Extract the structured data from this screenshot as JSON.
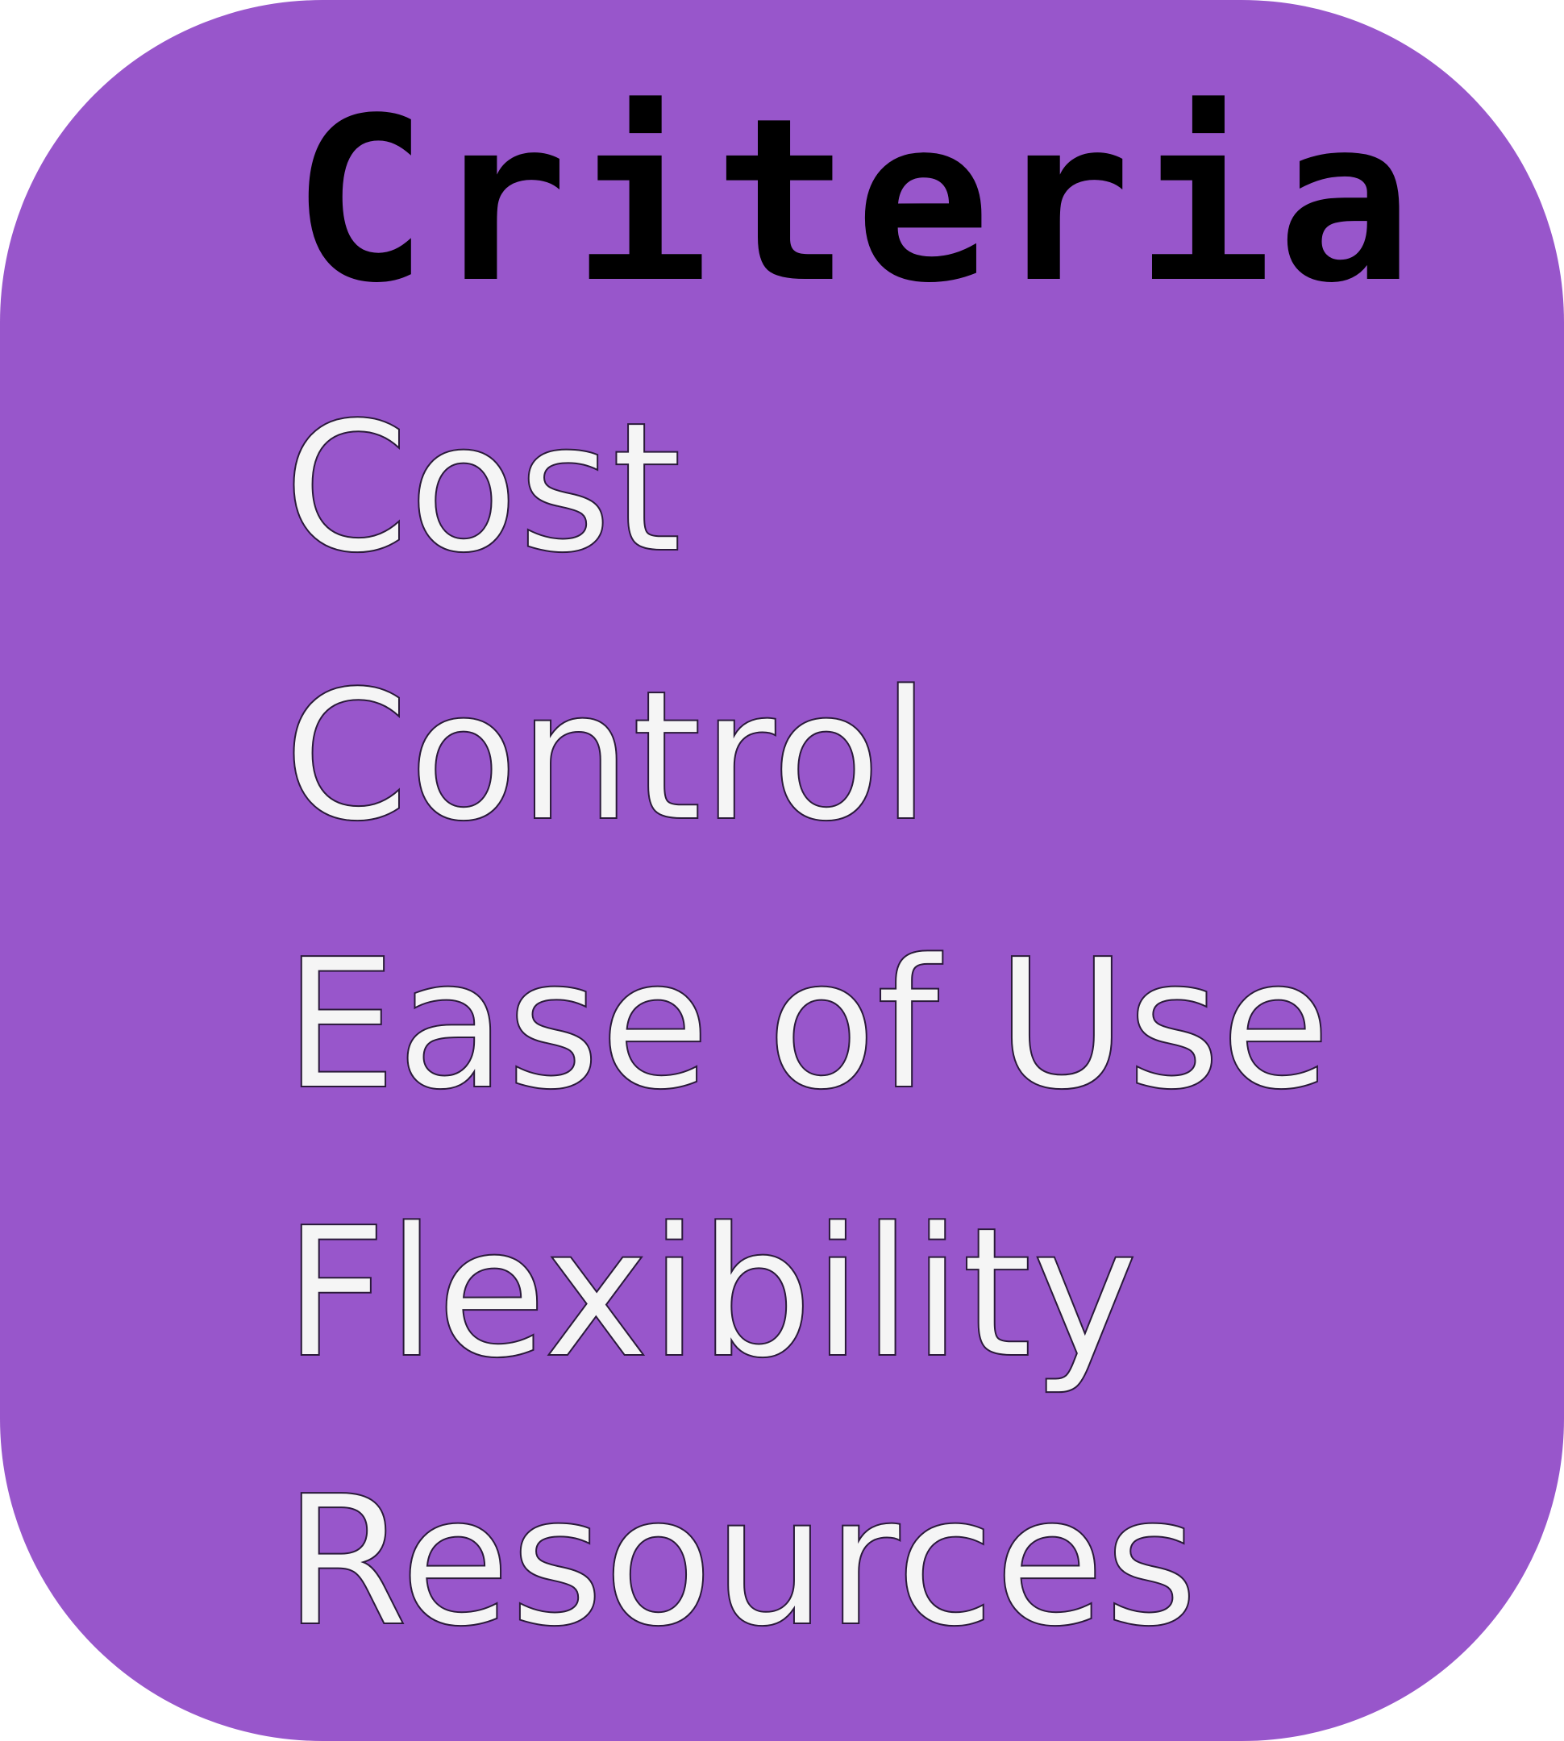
{
  "colors": {
    "card_background": "#9856CB",
    "heading_text": "#000000",
    "item_text": "#F5F5F5"
  },
  "title": "Criteria",
  "criteria": [
    "Cost",
    "Control",
    "Ease of Use",
    "Flexibility",
    "Resources"
  ]
}
